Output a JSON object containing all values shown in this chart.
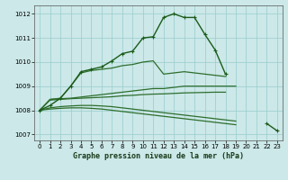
{
  "background_color": "#cce8e8",
  "grid_color": "#99cccc",
  "line_color_main": "#1a5c1a",
  "line_color_flat": "#2d6e2d",
  "title": "Graphe pression niveau de la mer (hPa)",
  "xlim": [
    -0.5,
    23.5
  ],
  "ylim": [
    1006.75,
    1012.35
  ],
  "yticks": [
    1007,
    1008,
    1009,
    1010,
    1011,
    1012
  ],
  "xticks": [
    0,
    1,
    2,
    3,
    4,
    5,
    6,
    7,
    8,
    9,
    10,
    11,
    12,
    13,
    14,
    15,
    16,
    17,
    18,
    19,
    20,
    21,
    22,
    23
  ],
  "series_main": [
    1008.0,
    1008.2,
    1008.5,
    1009.0,
    1009.6,
    1009.7,
    1009.8,
    1010.05,
    1010.35,
    1010.45,
    1011.0,
    1011.05,
    1011.85,
    1012.0,
    1011.85,
    1011.85,
    1011.15,
    1010.5,
    1009.5,
    null,
    null,
    null,
    1007.45,
    1007.15
  ],
  "series_line1": [
    1008.0,
    1008.45,
    1008.5,
    1009.0,
    1009.55,
    1009.65,
    1009.7,
    1009.75,
    1009.85,
    1009.9,
    1010.0,
    1010.05,
    1009.5,
    1009.55,
    1009.6,
    1009.55,
    1009.5,
    1009.45,
    1009.4,
    null,
    null,
    null,
    null,
    null
  ],
  "series_line2": [
    1008.0,
    1008.45,
    1008.48,
    1008.5,
    1008.55,
    1008.6,
    1008.65,
    1008.7,
    1008.75,
    1008.8,
    1008.85,
    1008.9,
    1008.9,
    1008.95,
    1009.0,
    1009.0,
    1009.0,
    1009.0,
    1009.0,
    1009.0,
    null,
    null,
    null,
    null
  ],
  "series_line3": [
    1008.0,
    1008.42,
    1008.45,
    1008.48,
    1008.5,
    1008.52,
    1008.54,
    1008.56,
    1008.6,
    1008.62,
    1008.65,
    1008.67,
    1008.68,
    1008.7,
    1008.72,
    1008.73,
    1008.74,
    1008.75,
    1008.75,
    null,
    null,
    null,
    null,
    null
  ],
  "series_line4": [
    1008.0,
    1008.1,
    1008.15,
    1008.18,
    1008.2,
    1008.2,
    1008.18,
    1008.15,
    1008.1,
    1008.05,
    1008.0,
    1007.95,
    1007.9,
    1007.85,
    1007.8,
    1007.75,
    1007.7,
    1007.65,
    1007.6,
    1007.55,
    null,
    null,
    null,
    null
  ],
  "series_line5": [
    1008.0,
    1008.05,
    1008.08,
    1008.1,
    1008.1,
    1008.08,
    1008.05,
    1008.0,
    1007.95,
    1007.9,
    1007.85,
    1007.8,
    1007.75,
    1007.7,
    1007.65,
    1007.6,
    1007.55,
    1007.5,
    1007.45,
    1007.4,
    null,
    null,
    null,
    null
  ]
}
